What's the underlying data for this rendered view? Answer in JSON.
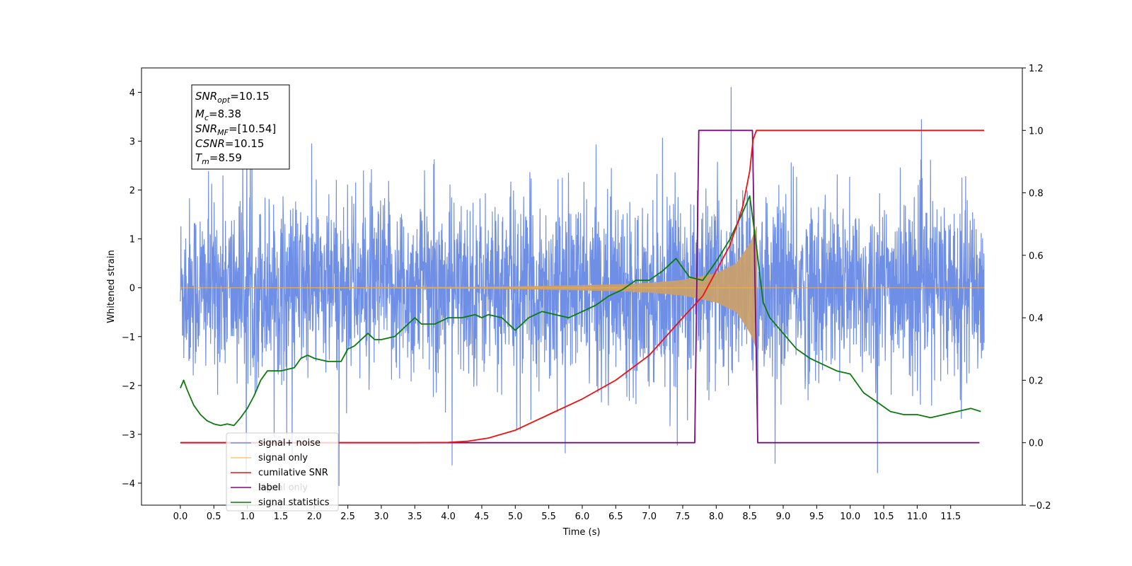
{
  "chart_data": {
    "type": "line",
    "xlabel": "Time (s)",
    "ylabel": "Whitened strain",
    "xlim": [
      -0.58,
      12.57
    ],
    "ylim": [
      -4.45,
      4.5
    ],
    "y2lim": [
      -0.2,
      1.2
    ],
    "x_ticks": [
      "0.0",
      "0.5",
      "1.0",
      "1.5",
      "2.0",
      "2.5",
      "3.0",
      "3.5",
      "4.0",
      "4.5",
      "5.0",
      "5.5",
      "6.0",
      "6.5",
      "7.0",
      "7.5",
      "8.0",
      "8.5",
      "9.0",
      "9.5",
      "10.0",
      "10.5",
      "11.0",
      "11.5"
    ],
    "y_ticks": [
      "−4",
      "−3",
      "−2",
      "−1",
      "0",
      "1",
      "2",
      "3",
      "4"
    ],
    "y2_ticks": [
      "−0.2",
      "0.0",
      "0.2",
      "0.4",
      "0.6",
      "0.8",
      "1.0",
      "1.2"
    ],
    "grid": false,
    "legend_position": "lower-left",
    "legend": [
      "signal+ noise",
      "signal only",
      "cumilative SNR",
      "label",
      "signal statistics"
    ],
    "colors": {
      "noise": "#6f8fe6",
      "signal": "#f5b042",
      "signal_fill": "#c8a06e",
      "cumulative_snr": "#ee1111",
      "label": "#7b0c7b",
      "statistics": "#0c7a0c"
    },
    "series": [
      {
        "name": "signal+ noise",
        "axis": "left",
        "description_range": [
          0.0,
          12.0
        ],
        "typical_amplitude": 2.2,
        "peak": 4.1
      },
      {
        "name": "signal only",
        "axis": "left",
        "envelope": {
          "x": [
            0,
            4.5,
            5.5,
            6.5,
            7.0,
            7.5,
            8.0,
            8.3,
            8.5,
            8.6
          ],
          "y": [
            0,
            0.02,
            0.04,
            0.07,
            0.1,
            0.16,
            0.3,
            0.5,
            0.9,
            1.25
          ]
        }
      },
      {
        "name": "cumilative SNR",
        "axis": "right",
        "x": [
          0,
          3.5,
          4.0,
          4.3,
          4.6,
          5.0,
          5.5,
          6.0,
          6.5,
          7.0,
          7.5,
          7.8,
          8.0,
          8.2,
          8.3,
          8.4,
          8.5,
          8.55,
          8.6,
          12.0
        ],
        "y": [
          0,
          0,
          0.001,
          0.005,
          0.015,
          0.04,
          0.09,
          0.14,
          0.2,
          0.28,
          0.4,
          0.47,
          0.55,
          0.63,
          0.69,
          0.76,
          0.87,
          0.97,
          1.0,
          1.0
        ]
      },
      {
        "name": "label",
        "axis": "right",
        "x": [
          0,
          7.68,
          7.74,
          8.54,
          8.62,
          11.93
        ],
        "y": [
          0,
          0,
          1,
          1,
          0,
          0
        ]
      },
      {
        "name": "signal statistics",
        "axis": "right",
        "x": [
          0,
          0.05,
          0.1,
          0.2,
          0.3,
          0.4,
          0.5,
          0.6,
          0.7,
          0.8,
          0.9,
          1.0,
          1.1,
          1.2,
          1.3,
          1.5,
          1.7,
          1.8,
          1.9,
          2.0,
          2.2,
          2.4,
          2.5,
          2.6,
          2.7,
          2.8,
          2.9,
          3.0,
          3.2,
          3.4,
          3.5,
          3.6,
          3.8,
          4.0,
          4.2,
          4.4,
          4.5,
          4.6,
          4.8,
          5.0,
          5.1,
          5.2,
          5.4,
          5.6,
          5.8,
          6.0,
          6.2,
          6.4,
          6.6,
          6.8,
          7.0,
          7.2,
          7.4,
          7.6,
          7.8,
          8.0,
          8.2,
          8.4,
          8.5,
          8.6,
          8.7,
          8.8,
          9.0,
          9.2,
          9.4,
          9.6,
          9.8,
          10.0,
          10.2,
          10.4,
          10.6,
          10.8,
          11.0,
          11.2,
          11.4,
          11.6,
          11.8,
          11.95
        ],
        "y": [
          0.175,
          0.2,
          0.17,
          0.12,
          0.09,
          0.07,
          0.06,
          0.055,
          0.06,
          0.055,
          0.08,
          0.11,
          0.15,
          0.2,
          0.23,
          0.23,
          0.24,
          0.27,
          0.28,
          0.27,
          0.26,
          0.26,
          0.3,
          0.31,
          0.33,
          0.35,
          0.33,
          0.33,
          0.34,
          0.38,
          0.4,
          0.38,
          0.38,
          0.4,
          0.4,
          0.41,
          0.4,
          0.41,
          0.4,
          0.36,
          0.38,
          0.4,
          0.42,
          0.41,
          0.4,
          0.42,
          0.44,
          0.47,
          0.49,
          0.52,
          0.52,
          0.55,
          0.59,
          0.53,
          0.52,
          0.58,
          0.65,
          0.74,
          0.79,
          0.63,
          0.45,
          0.4,
          0.35,
          0.3,
          0.27,
          0.25,
          0.23,
          0.22,
          0.16,
          0.13,
          0.1,
          0.09,
          0.09,
          0.08,
          0.09,
          0.1,
          0.11,
          0.1
        ]
      }
    ]
  },
  "info_box": {
    "line1_main": "SNR",
    "line1_sub": "opt",
    "line1_val": "=10.15",
    "line2_main": "M",
    "line2_sub": "c",
    "line2_val": "=8.38",
    "line3_main": "SNR",
    "line3_sub": "MF",
    "line3_val": "=[10.54]",
    "line4_main": "CSNR",
    "line4_val": "=10.15",
    "line5_main": "T",
    "line5_sub": "m",
    "line5_val": "=8.59"
  },
  "ghost_legend_text": "signal only"
}
